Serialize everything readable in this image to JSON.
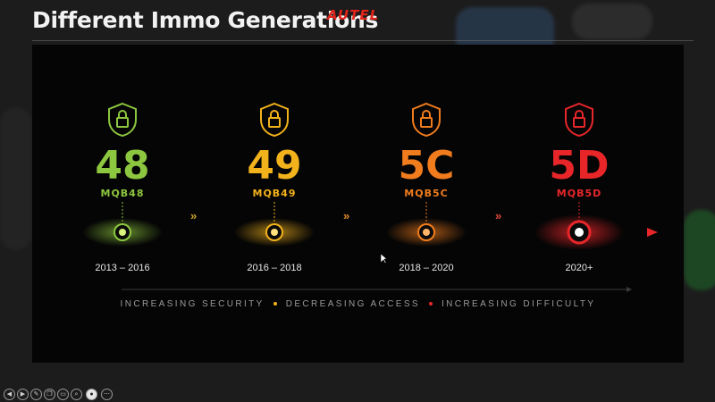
{
  "header": {
    "title": "Different Immo Generations",
    "logo_text": "AUTEL"
  },
  "generations": [
    {
      "code": "48",
      "sub": "MQB48",
      "years": "2013 – 2016",
      "color": "#8dc63f"
    },
    {
      "code": "49",
      "sub": "MQB49",
      "years": "2016 – 2018",
      "color": "#f2b21b"
    },
    {
      "code": "5C",
      "sub": "MQB5C",
      "years": "2018 – 2020",
      "color": "#f07c1e"
    },
    {
      "code": "5D",
      "sub": "MQB5D",
      "years": "2020+",
      "color": "#e8262a"
    }
  ],
  "tagline": {
    "part1": "INCREASING SECURITY",
    "part2": "DECREASING ACCESS",
    "part3": "INCREASING DIFFICULTY"
  },
  "chevron": "»",
  "controls": [
    "prev-icon",
    "next-icon",
    "pen-icon",
    "copy-icon",
    "screen-icon",
    "search-icon",
    "record-icon",
    "more-icon"
  ],
  "accent": "#e2231a"
}
